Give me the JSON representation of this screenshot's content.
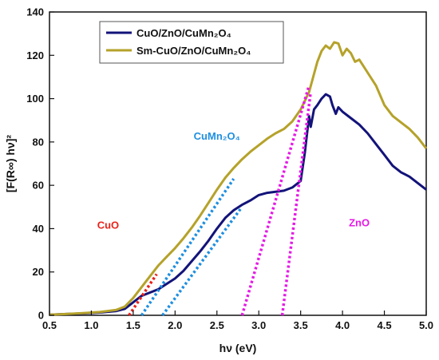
{
  "chart_data": {
    "type": "line",
    "xlabel": "hν (eV)",
    "ylabel": "[F(R∞) hν]²",
    "xlim": [
      0.5,
      5.0
    ],
    "ylim": [
      0,
      140
    ],
    "x_ticks": [
      "0.5",
      "1.0",
      "1.5",
      "2.0",
      "2.5",
      "3.0",
      "3.5",
      "4.0",
      "4.5",
      "5.0"
    ],
    "y_ticks": [
      "0",
      "20",
      "40",
      "60",
      "80",
      "100",
      "120",
      "140"
    ],
    "grid": false,
    "legend_position": "top-left",
    "series": [
      {
        "name": "CuO/ZnO/CuMn₂O₄",
        "color": "#13137a",
        "x": [
          0.5,
          0.7,
          0.9,
          1.1,
          1.3,
          1.4,
          1.5,
          1.6,
          1.7,
          1.8,
          1.9,
          2.0,
          2.1,
          2.2,
          2.3,
          2.4,
          2.5,
          2.6,
          2.7,
          2.8,
          2.9,
          3.0,
          3.1,
          3.2,
          3.3,
          3.4,
          3.5,
          3.55,
          3.6,
          3.62,
          3.66,
          3.7,
          3.75,
          3.8,
          3.85,
          3.88,
          3.92,
          3.95,
          4.0,
          4.1,
          4.2,
          4.3,
          4.4,
          4.5,
          4.6,
          4.7,
          4.8,
          4.9,
          5.0
        ],
        "values": [
          0.3,
          0.6,
          0.9,
          1.3,
          2.0,
          3.0,
          6.0,
          9.0,
          10.5,
          12.0,
          14.5,
          17.0,
          20.5,
          25.0,
          29.5,
          34.5,
          40.0,
          45.0,
          48.5,
          51.0,
          53.0,
          55.5,
          56.5,
          57.0,
          57.5,
          59.0,
          62.0,
          75.0,
          92.0,
          87.0,
          95.0,
          97.0,
          100.0,
          102.0,
          101.0,
          97.0,
          93.0,
          96.0,
          94.0,
          91.0,
          88.0,
          84.0,
          79.0,
          74.0,
          69.0,
          66.0,
          64.0,
          61.0,
          58.0
        ]
      },
      {
        "name": "Sm-CuO/ZnO/CuMn₂O₄",
        "color": "#b5a22a",
        "x": [
          0.5,
          0.7,
          0.9,
          1.1,
          1.3,
          1.4,
          1.5,
          1.6,
          1.7,
          1.8,
          1.9,
          2.0,
          2.1,
          2.2,
          2.3,
          2.4,
          2.5,
          2.6,
          2.7,
          2.8,
          2.9,
          3.0,
          3.1,
          3.2,
          3.3,
          3.4,
          3.5,
          3.6,
          3.65,
          3.7,
          3.75,
          3.8,
          3.85,
          3.9,
          3.95,
          4.0,
          4.05,
          4.1,
          4.15,
          4.2,
          4.3,
          4.4,
          4.5,
          4.6,
          4.7,
          4.8,
          4.9,
          5.0
        ],
        "values": [
          0.3,
          0.6,
          1.0,
          1.5,
          2.5,
          4.0,
          8.0,
          13.0,
          18.0,
          23.0,
          27.0,
          31.0,
          35.5,
          40.5,
          46.0,
          52.0,
          58.0,
          63.5,
          68.0,
          72.0,
          75.5,
          78.5,
          81.5,
          84.0,
          86.0,
          89.5,
          95.0,
          103.0,
          110.0,
          117.0,
          122.0,
          124.5,
          123.0,
          126.0,
          125.5,
          120.0,
          123.0,
          121.0,
          117.0,
          118.0,
          112.0,
          106.0,
          97.0,
          92.0,
          89.0,
          86.0,
          82.0,
          77.0
        ]
      }
    ],
    "tangent_lines": [
      {
        "label": "CuO",
        "color": "#e8221b",
        "x": [
          1.45,
          1.78
        ],
        "values": [
          0,
          19
        ]
      },
      {
        "label": "CuMn₂O₄",
        "color": "#1f8fe0",
        "x": [
          1.6,
          2.7
        ],
        "values": [
          0,
          63
        ]
      },
      {
        "label": "CuMn₂O₄",
        "color": "#1f8fe0",
        "x": [
          1.85,
          2.78
        ],
        "values": [
          0,
          49
        ]
      },
      {
        "label": "ZnO",
        "color": "#e619e6",
        "x": [
          2.8,
          3.6
        ],
        "values": [
          0,
          106
        ]
      },
      {
        "label": "ZnO",
        "color": "#e619e6",
        "x": [
          3.28,
          3.62
        ],
        "values": [
          0,
          103
        ]
      }
    ],
    "annotations": [
      {
        "text": "CuO",
        "color": "#e8221b",
        "x": 1.2,
        "y": 40
      },
      {
        "text": "CuMn₂O₄",
        "color": "#1f8fe0",
        "x": 2.5,
        "y": 81
      },
      {
        "text": "ZnO",
        "color": "#e619e6",
        "x": 4.2,
        "y": 41
      }
    ]
  }
}
